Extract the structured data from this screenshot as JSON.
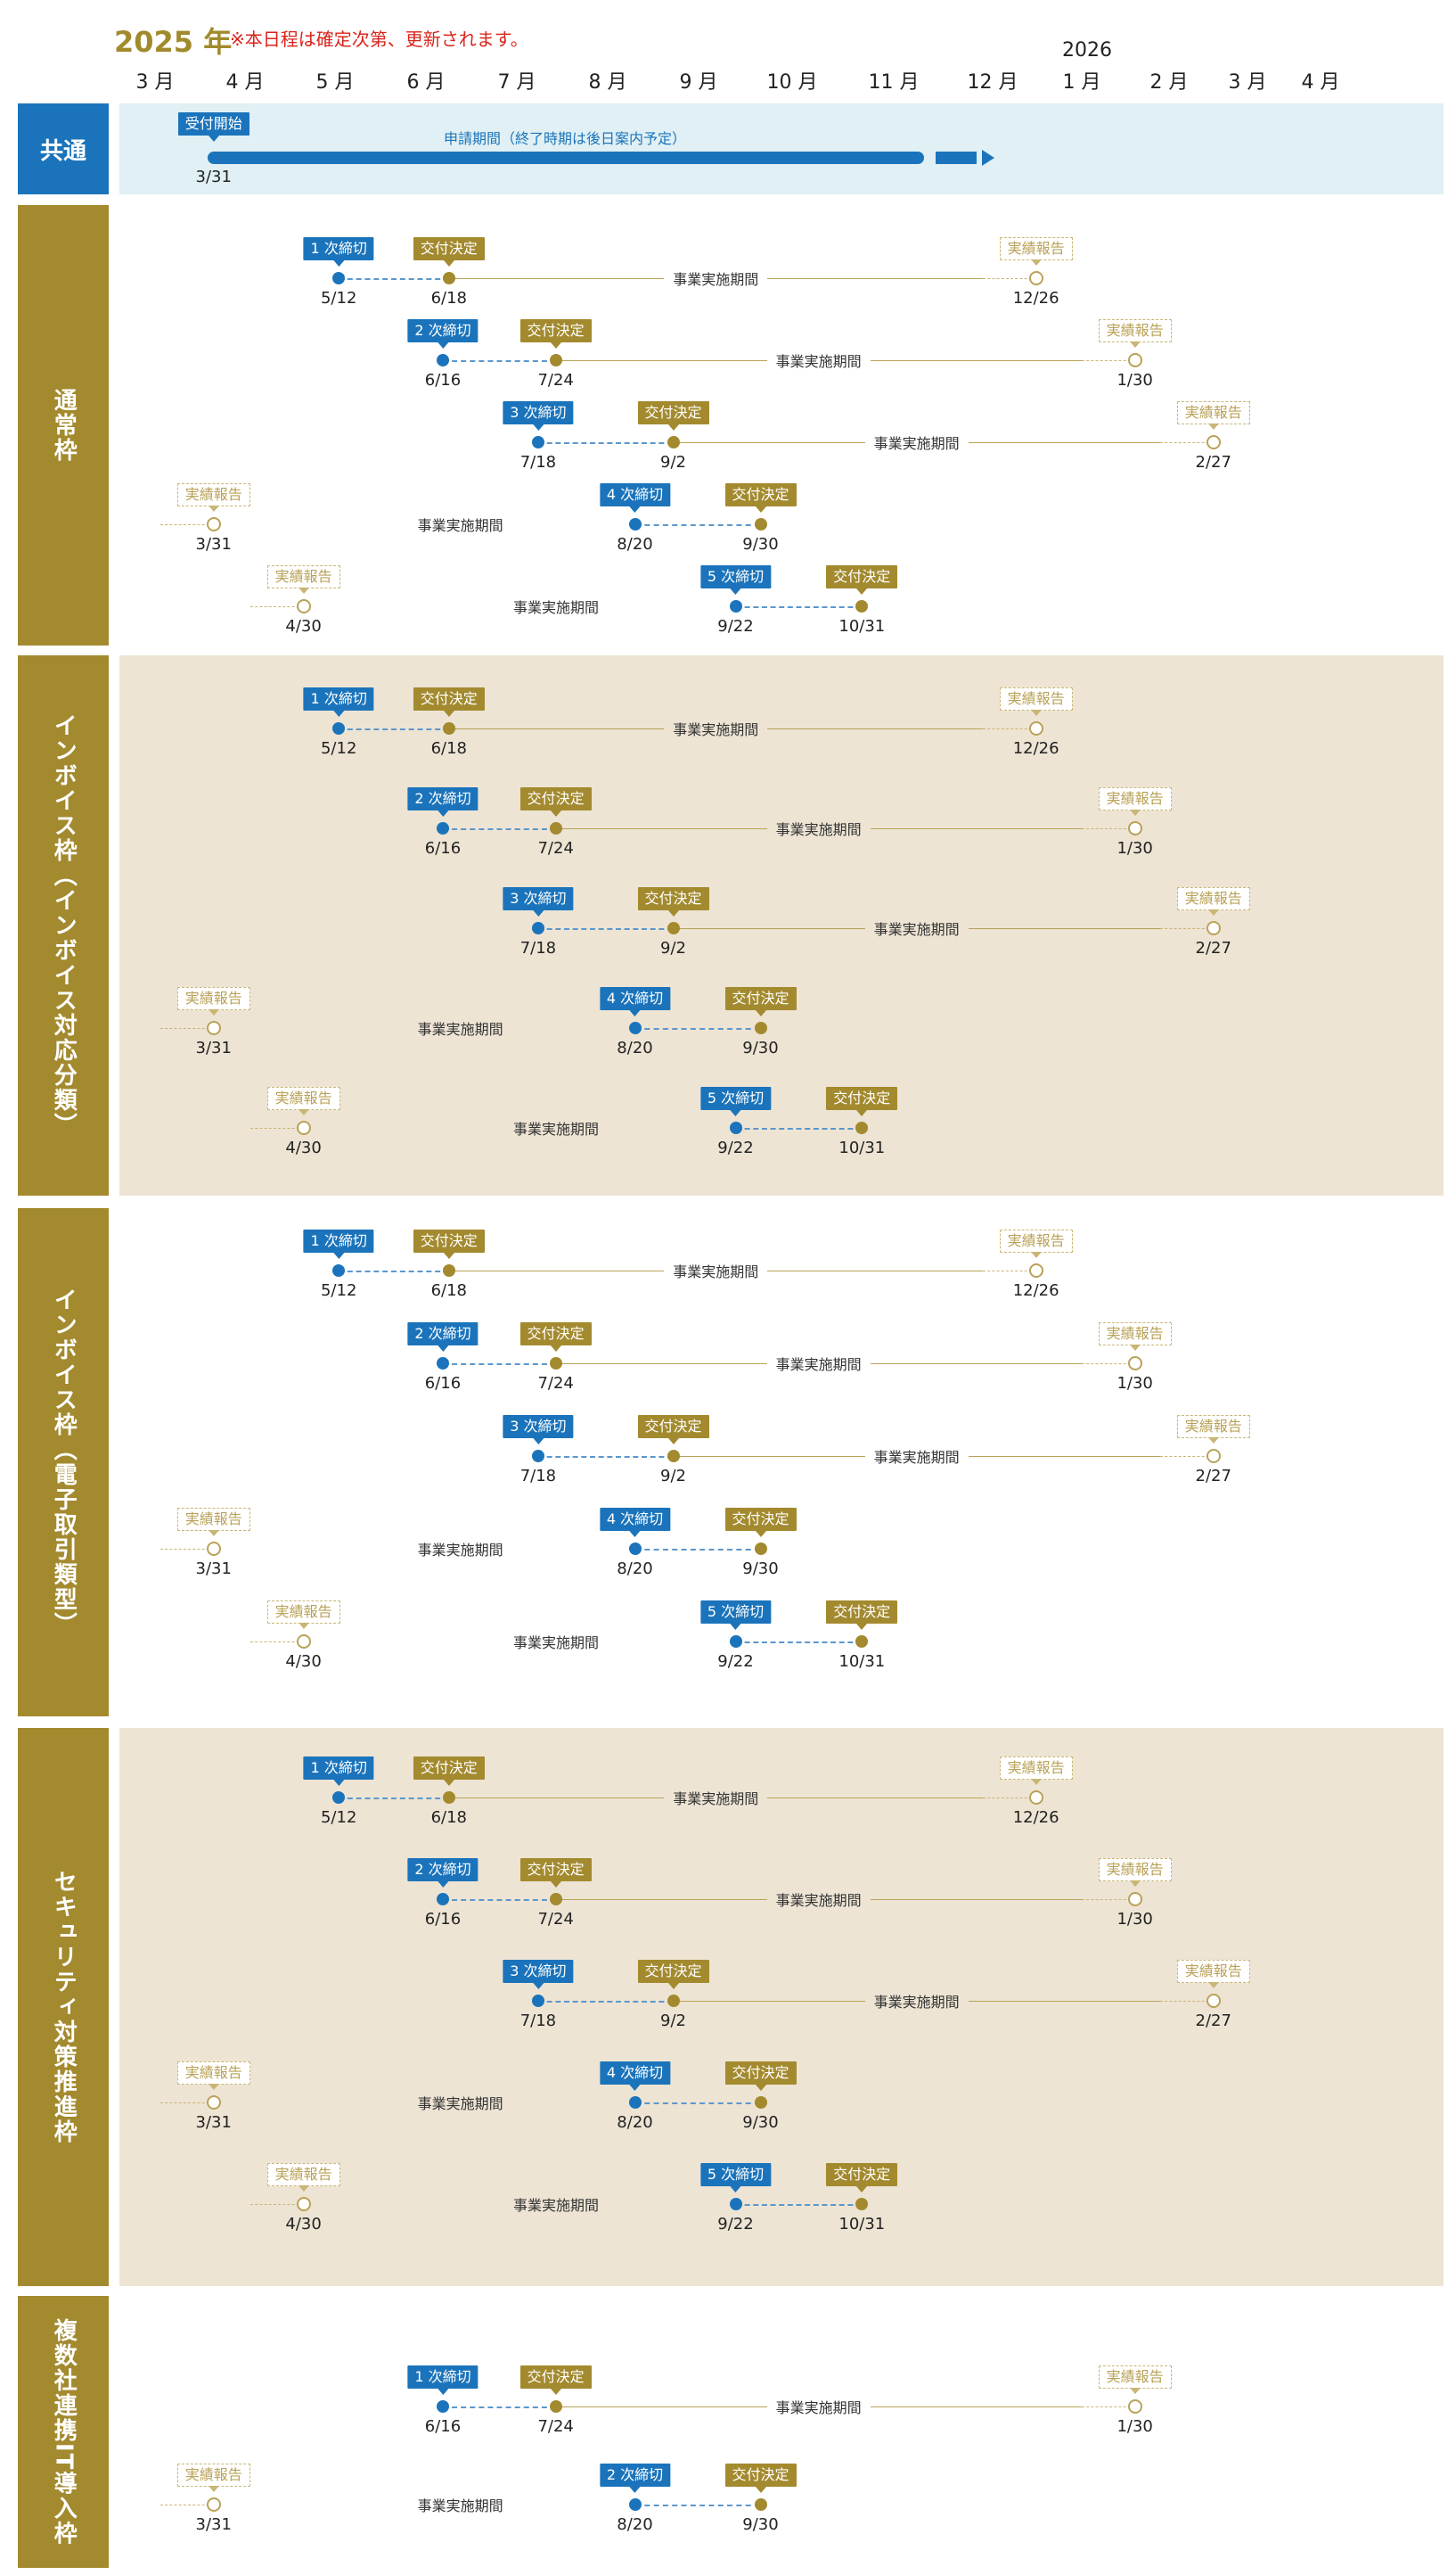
{
  "header": {
    "year": "2025 年",
    "note": "※本日程は確定次第、更新されます。",
    "next_year": "2026",
    "months": [
      "3 月",
      "4 月",
      "5 月",
      "6 月",
      "7 月",
      "8 月",
      "9 月",
      "10 月",
      "11 月",
      "12 月",
      "1 月",
      "2 月",
      "3 月",
      "4 月"
    ]
  },
  "labels": {
    "deadline_suffix": "次締切",
    "grant": "交付決定",
    "report": "実績報告",
    "period": "事業実施期間"
  },
  "colors": {
    "blue": "#1b74bb",
    "gold": "#a38a2f",
    "light_blue": "#e0f0f4",
    "beige": "#ede4d4"
  },
  "common": {
    "label": "共通",
    "start_tag": "受付開始",
    "start_date": "3/31",
    "period_text": "申請期間（終了時期は後日案内予定）"
  },
  "sections": [
    {
      "label": "通常枠",
      "rounds": [
        {
          "n": "1",
          "deadline": "5/12",
          "grant": "6/18",
          "report": "12/26"
        },
        {
          "n": "2",
          "deadline": "6/16",
          "grant": "7/24",
          "report": "1/30"
        },
        {
          "n": "3",
          "deadline": "7/18",
          "grant": "9/2",
          "report": "2/27"
        },
        {
          "n": "4",
          "deadline": "8/20",
          "grant": "9/30",
          "report": "3/31"
        },
        {
          "n": "5",
          "deadline": "9/22",
          "grant": "10/31",
          "report": "4/30"
        }
      ]
    },
    {
      "label": "インボイス枠（インボイス対応分類）",
      "rounds": [
        {
          "n": "1",
          "deadline": "5/12",
          "grant": "6/18",
          "report": "12/26"
        },
        {
          "n": "2",
          "deadline": "6/16",
          "grant": "7/24",
          "report": "1/30"
        },
        {
          "n": "3",
          "deadline": "7/18",
          "grant": "9/2",
          "report": "2/27"
        },
        {
          "n": "4",
          "deadline": "8/20",
          "grant": "9/30",
          "report": "3/31"
        },
        {
          "n": "5",
          "deadline": "9/22",
          "grant": "10/31",
          "report": "4/30"
        }
      ]
    },
    {
      "label": "インボイス枠（電子取引類型）",
      "rounds": [
        {
          "n": "1",
          "deadline": "5/12",
          "grant": "6/18",
          "report": "12/26"
        },
        {
          "n": "2",
          "deadline": "6/16",
          "grant": "7/24",
          "report": "1/30"
        },
        {
          "n": "3",
          "deadline": "7/18",
          "grant": "9/2",
          "report": "2/27"
        },
        {
          "n": "4",
          "deadline": "8/20",
          "grant": "9/30",
          "report": "3/31"
        },
        {
          "n": "5",
          "deadline": "9/22",
          "grant": "10/31",
          "report": "4/30"
        }
      ]
    },
    {
      "label": "セキュリティ対策推進枠",
      "rounds": [
        {
          "n": "1",
          "deadline": "5/12",
          "grant": "6/18",
          "report": "12/26"
        },
        {
          "n": "2",
          "deadline": "6/16",
          "grant": "7/24",
          "report": "1/30"
        },
        {
          "n": "3",
          "deadline": "7/18",
          "grant": "9/2",
          "report": "2/27"
        },
        {
          "n": "4",
          "deadline": "8/20",
          "grant": "9/30",
          "report": "3/31"
        },
        {
          "n": "5",
          "deadline": "9/22",
          "grant": "10/31",
          "report": "4/30"
        }
      ]
    },
    {
      "label": "複数社連携IT導入枠",
      "rounds": [
        {
          "n": "1",
          "deadline": "6/16",
          "grant": "7/24",
          "report": "1/30"
        },
        {
          "n": "2",
          "deadline": "8/20",
          "grant": "9/30",
          "report": "3/31"
        }
      ]
    }
  ]
}
